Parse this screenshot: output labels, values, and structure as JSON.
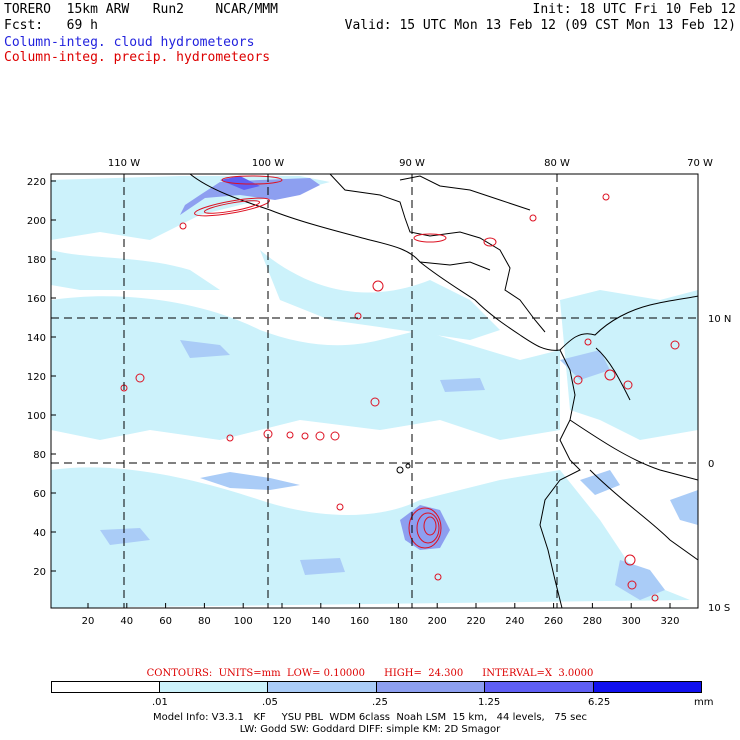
{
  "header": {
    "line1_left": "TORERO  15km ARW   Run2    NCAR/MMM",
    "line1_right": "Init: 18 UTC Fri 10 Feb 12",
    "line2_left": "Fcst:   69 h",
    "line2_right": "Valid: 15 UTC Mon 13 Feb 12 (09 CST Mon 13 Feb 12)",
    "legend_cloud": "Column-integ. cloud hydrometeors",
    "legend_precip": "Column-integ. precip. hydrometeors"
  },
  "map": {
    "top_lon_labels": [
      "110 W",
      "100 W",
      "90 W",
      "80 W",
      "70 W"
    ],
    "right_lat_labels": [
      "10 N",
      "0",
      "10 S"
    ],
    "left_grid_labels": [
      "220",
      "200",
      "180",
      "160",
      "140",
      "120",
      "100",
      "80",
      "60",
      "40",
      "20"
    ],
    "bottom_grid_labels": [
      "20",
      "40",
      "60",
      "80",
      "100",
      "120",
      "140",
      "160",
      "180",
      "200",
      "220",
      "240",
      "260",
      "280",
      "300",
      "320"
    ]
  },
  "contours_info": {
    "contours_label": "CONTOURS:",
    "units": "UNITS=mm",
    "low": "LOW= 0.10000",
    "high": "HIGH=  24.300",
    "interval": "INTERVAL=X  3.0000"
  },
  "colorbar": {
    "labels": [
      ".01",
      ".05",
      ".25",
      "1.25",
      "6.25"
    ],
    "unit": "mm",
    "colors": [
      "#ffffff",
      "#ccf2fb",
      "#aaccf7",
      "#8d9ff0",
      "#5f5ff4",
      "#1010ee"
    ]
  },
  "footer": {
    "line1": "Model Info: V3.3.1   KF     YSU PBL  WDM 6class  Noah LSM  15 km,   44 levels,   75 sec",
    "line2": "LW: Godd SW: Goddard DIFF: simple KM: 2D Smagor"
  }
}
